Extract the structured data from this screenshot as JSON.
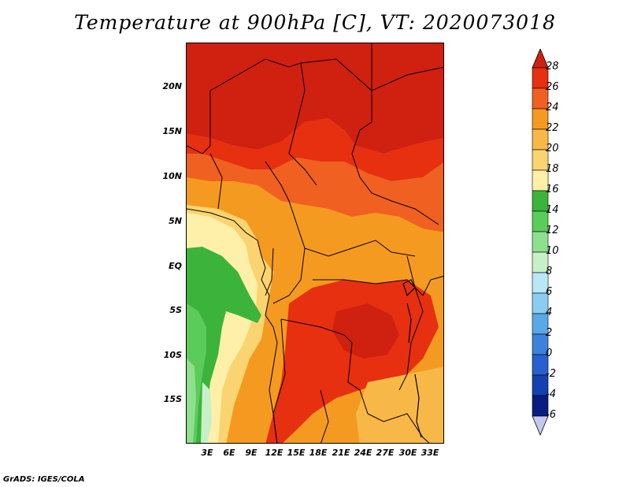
{
  "title": "Temperature at 900hPa [C], VT: 2020073018",
  "lat_ticks": [
    "20N",
    "15N",
    "10N",
    "5N",
    "EQ",
    "5S",
    "10S",
    "15S"
  ],
  "lon_ticks": [
    "3E",
    "6E",
    "9E",
    "12E",
    "15E",
    "18E",
    "21E",
    "24E",
    "27E",
    "30E",
    "33E"
  ],
  "colorbar": {
    "levels": [
      "28",
      "26",
      "24",
      "22",
      "20",
      "18",
      "16",
      "14",
      "12",
      "10",
      "8",
      "6",
      "4",
      "2",
      "0",
      "-2",
      "-4",
      "-6"
    ],
    "colors": [
      "#d02010",
      "#e63010",
      "#f06020",
      "#f59a20",
      "#f8b848",
      "#fad470",
      "#fef0a8",
      "#3cb43c",
      "#5acc5a",
      "#8ee08e",
      "#c8f0c8",
      "#b8e8f8",
      "#8acdf0",
      "#5aa8e8",
      "#3c82dc",
      "#2860d0",
      "#1440b0",
      "#0a1c80",
      "#101050"
    ]
  },
  "credit": "GrADS: IGES/COLA"
}
